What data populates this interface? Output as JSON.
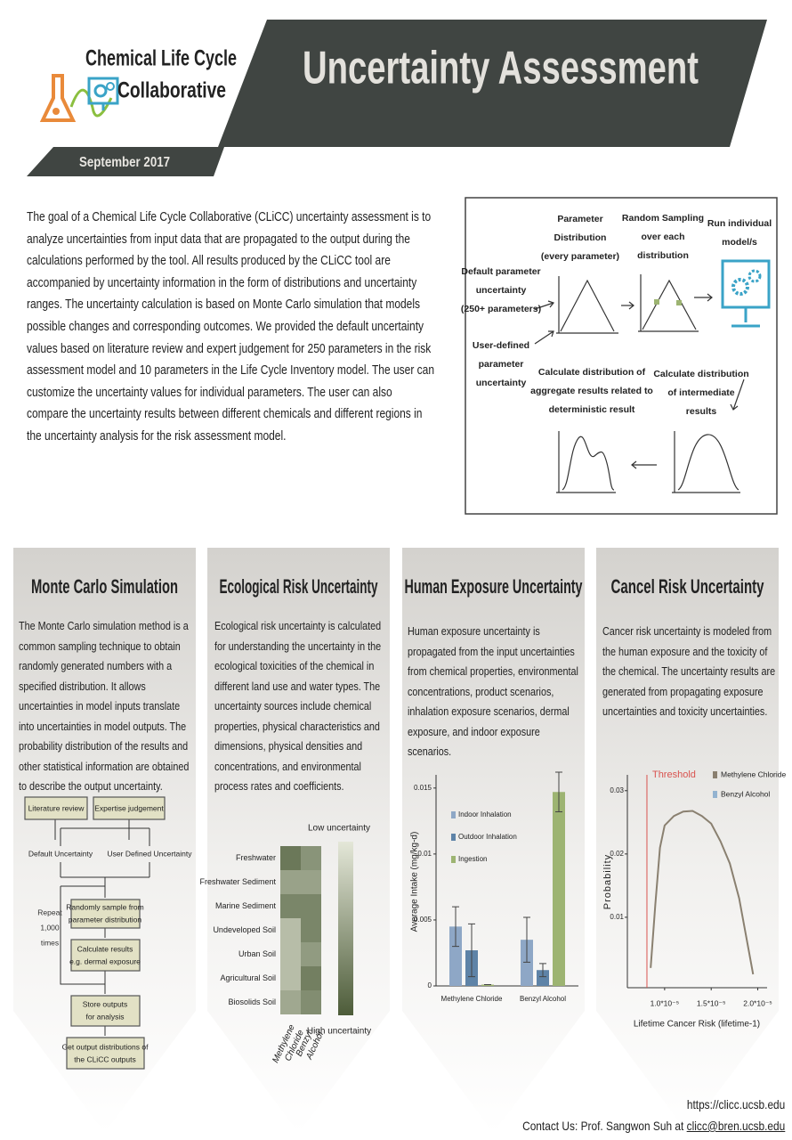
{
  "header": {
    "org_name": [
      "Chemical Life Cycle",
      "Collaborative"
    ],
    "title": "Uncertainty Assessment",
    "date": "September 2017"
  },
  "intro": "The goal of a Chemical Life Cycle Collaborative (CLiCC) uncertainty assessment is to analyze uncertainties from input data that are propagated to the output during the calculations performed by the tool. All results produced by the CLiCC tool are accompanied by uncertainty information in the form of distributions and uncertainty ranges. The uncertainty calculation is based on Monte Carlo simulation that models possible changes and corresponding outcomes. We provided the default uncertainty values based on literature review and expert judgement for 250 parameters in the risk assessment model and 10 parameters in the Life Cycle Inventory model. The user can customize the uncertainty values for individual parameters. The user can also compare the uncertainty results between different chemicals and different regions in the uncertainty analysis for the risk assessment model.",
  "process": {
    "distribution": [
      "Parameter",
      "Distribution",
      "(every parameter)"
    ],
    "sampling": [
      "Random Sampling",
      "over each",
      "distribution"
    ],
    "run": [
      "Run individual",
      "model/s"
    ],
    "default": [
      "Default parameter",
      "uncertainty",
      "(250+ parameters)"
    ],
    "user": [
      "User-defined",
      "parameter",
      "uncertainty"
    ],
    "aggregate": [
      "Calculate distribution of",
      "aggregate results related to",
      "deterministic result"
    ],
    "intermediate": [
      "Calculate distribution",
      "of intermediate",
      "results"
    ]
  },
  "panels": [
    {
      "title": "Monte Carlo Simulation",
      "text": "The Monte Carlo simulation method is a common sampling technique to obtain randomly generated numbers with a specified distribution. It allows uncertainties in model inputs translate into uncertainties in model outputs. The probability distribution of the results and other statistical information are obtained to describe the output uncertainty."
    },
    {
      "title": "Ecological Risk Uncertainty",
      "text": "Ecological risk uncertainty is calculated for understanding the uncertainty in the ecological toxicities of the chemical in different land use and water types. The uncertainty sources include chemical properties, physical characteristics and dimensions, physical densities and concentrations,  and environmental process rates and coefficients."
    },
    {
      "title": "Human Exposure Uncertainty",
      "text": "Human exposure uncertainty is propagated from the input uncertainties from chemical properties, environmental concentrations, product scenarios, inhalation exposure scenarios, dermal exposure, and indoor exposure scenarios."
    },
    {
      "title": "Cancel Risk Uncertainty",
      "text": "Cancer risk uncertainty is modeled from the human exposure and the toxicity of the chemical. The uncertainty results are generated from propagating exposure uncertainties and toxicity uncertainties."
    }
  ],
  "monte_carlo_flow": {
    "literature": "Literature review",
    "expertise": "Expertise judgement",
    "default": "Default Uncertainty",
    "user": "User Defined  Uncertainty",
    "repeat": [
      "Repeat",
      "1,000",
      "times"
    ],
    "sample": [
      "Randomly sample from",
      "parameter distribution"
    ],
    "calculate": [
      "Calculate results",
      "e.g. dermal exposure"
    ],
    "store": [
      "Store outputs",
      "for analysis"
    ],
    "output": [
      "Get output distributions of",
      "the CLiCC outputs"
    ]
  },
  "heatmap": {
    "rows": [
      "Freshwater",
      "Freshwater Sediment",
      "Marine Sediment",
      "Undeveloped Soil",
      "Urban Soil",
      "Agricultural Soil",
      "Biosolids Soil"
    ],
    "columns": [
      [
        "Methylene",
        "Chloride"
      ],
      [
        "Benzyl",
        "Alcohol"
      ]
    ],
    "values": [
      [
        0.8,
        0.6
      ],
      [
        0.5,
        0.5
      ],
      [
        0.7,
        0.7
      ],
      [
        0.3,
        0.7
      ],
      [
        0.3,
        0.55
      ],
      [
        0.3,
        0.75
      ],
      [
        0.45,
        0.65
      ]
    ],
    "low_label": "Low uncertainty",
    "high_label": "High uncertainty",
    "low_color": "#e4e7d8",
    "high_color": "#4d5c39"
  },
  "chart_data": [
    {
      "type": "bar",
      "y_label": "Average Intake (mg/kg-d)",
      "categories": [
        "Methylene Chloride",
        "Benzyl Alcohol"
      ],
      "series": [
        {
          "name": "Indoor Inhalation",
          "color": "#8ea7c6",
          "values": [
            0.0045,
            0.0035
          ],
          "errors": [
            0.0015,
            0.0017
          ]
        },
        {
          "name": "Outdoor Inhalation",
          "color": "#5e83a7",
          "values": [
            0.0027,
            0.0012
          ],
          "errors": [
            0.002,
            0.0005
          ]
        },
        {
          "name": "Ingestion",
          "color": "#9db472",
          "values": [
            0.0001,
            0.0147
          ],
          "errors": [
            0,
            0.0015
          ]
        }
      ],
      "ylim": [
        0,
        0.016
      ],
      "yticks": [
        0,
        0.005,
        0.01,
        0.015
      ]
    },
    {
      "type": "line",
      "x_label": "Lifetime Cancer Risk (lifetime-1)",
      "y_label": "Probability",
      "x": [
        8.5e-06,
        9e-06,
        9.5e-06,
        1e-05,
        1.1e-05,
        1.2e-05,
        1.3e-05,
        1.4e-05,
        1.5e-05,
        1.6e-05,
        1.7e-05,
        1.8e-05,
        1.9e-05,
        1.95e-05
      ],
      "series": [
        {
          "name": "Methylene Chloride",
          "color": "#8a8070",
          "values": [
            0.002,
            0.012,
            0.021,
            0.0245,
            0.026,
            0.0267,
            0.0268,
            0.026,
            0.0248,
            0.022,
            0.0185,
            0.013,
            0.005,
            0.001
          ]
        },
        {
          "name": "Benzyl Alcohol",
          "color": "#93b3d0",
          "values": [
            null,
            null,
            null,
            null,
            null,
            null,
            null,
            null,
            null,
            null,
            null,
            null,
            null,
            null
          ]
        }
      ],
      "threshold": {
        "value": 8.1e-06,
        "label": "Threshold",
        "color": "#d9534f"
      },
      "xlim": [
        6e-06,
        2.1e-05
      ],
      "xticks": [
        {
          "value": 1e-05,
          "label": "1.0*10⁻⁵"
        },
        {
          "value": 1.5e-05,
          "label": "1.5*10⁻⁵"
        },
        {
          "value": 2e-05,
          "label": "2.0*10⁻⁵"
        }
      ],
      "ylim": [
        0,
        0.0325
      ],
      "yticks": [
        0.01,
        0.02,
        0.03
      ]
    }
  ],
  "footer": {
    "url": "https://clicc.ucsb.edu",
    "contact": "Contact Us: Prof. Sangwon Suh at ",
    "email": "clicc@bren.ucsb.edu"
  }
}
